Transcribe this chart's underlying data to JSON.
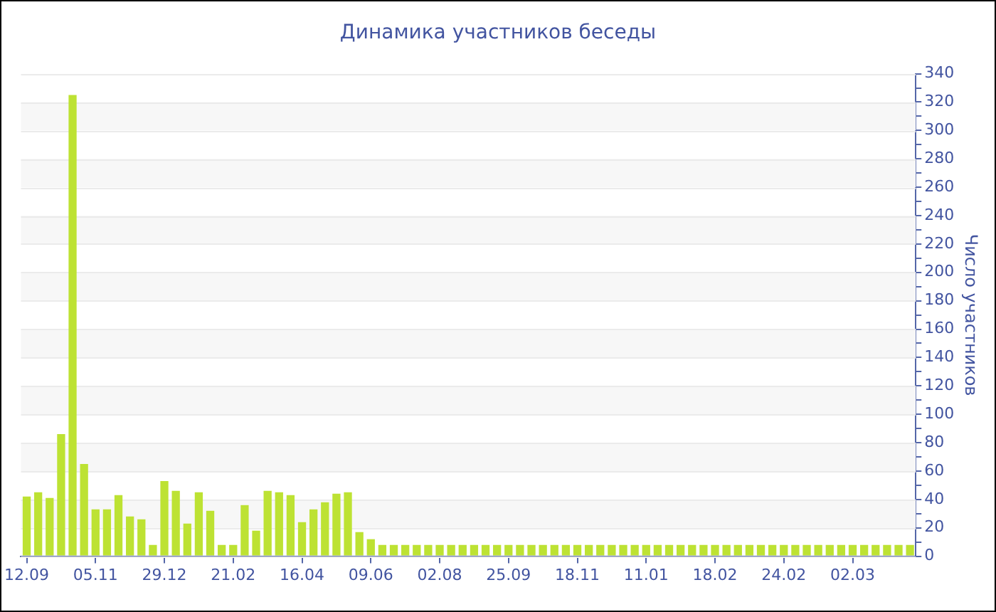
{
  "chart_data": {
    "type": "bar",
    "title": "Динамика участников беседы",
    "ylabel": "Число участников",
    "categories": [
      "12.09",
      null,
      null,
      null,
      null,
      null,
      "05.11",
      null,
      null,
      null,
      null,
      null,
      "29.12",
      null,
      null,
      null,
      null,
      null,
      "21.02",
      null,
      null,
      null,
      null,
      null,
      "16.04",
      null,
      null,
      null,
      null,
      null,
      "09.06",
      null,
      null,
      null,
      null,
      null,
      "02.08",
      null,
      null,
      null,
      null,
      null,
      "25.09",
      null,
      null,
      null,
      null,
      null,
      "18.11",
      null,
      null,
      null,
      null,
      null,
      "11.01",
      null,
      null,
      null,
      null,
      null,
      "18.02",
      null,
      null,
      null,
      null,
      null,
      "24.02",
      null,
      null,
      null,
      null,
      null,
      "02.03",
      null,
      null,
      null,
      null,
      null
    ],
    "values": [
      42,
      45,
      41,
      86,
      325,
      65,
      33,
      33,
      43,
      28,
      26,
      8,
      53,
      46,
      23,
      45,
      32,
      8,
      8,
      36,
      18,
      46,
      45,
      43,
      24,
      33,
      38,
      44,
      45,
      17,
      12,
      8,
      8,
      8,
      8,
      8,
      8,
      8,
      8,
      8,
      8,
      8,
      8,
      8,
      8,
      8,
      8,
      8,
      8,
      8,
      8,
      8,
      8,
      8,
      8,
      8,
      8,
      8,
      8,
      8,
      8,
      8,
      8,
      8,
      8,
      8,
      8,
      8,
      8,
      8,
      8,
      8,
      8,
      8,
      8,
      8,
      8,
      8
    ],
    "color": "#bde233",
    "ylim": [
      0,
      340
    ],
    "yticks": [
      0,
      {
        "value": 10,
        "label": null
      },
      20,
      {
        "value": 30,
        "label": null
      },
      40,
      {
        "value": 50,
        "label": null
      },
      60,
      {
        "value": 70,
        "label": null
      },
      80,
      {
        "value": 90,
        "label": null
      },
      100,
      {
        "value": 110,
        "label": null
      },
      120,
      {
        "value": 130,
        "label": null
      },
      140,
      {
        "value": 150,
        "label": null
      },
      160,
      {
        "value": 170,
        "label": null
      },
      180,
      {
        "value": 190,
        "label": null
      },
      200,
      {
        "value": 210,
        "label": null
      },
      220,
      {
        "value": 230,
        "label": null
      },
      240,
      {
        "value": 250,
        "label": null
      },
      260,
      {
        "value": 270,
        "label": null
      },
      280,
      {
        "value": 290,
        "label": null
      },
      300,
      {
        "value": 310,
        "label": null
      },
      320,
      {
        "value": 330,
        "label": null
      },
      340
    ],
    "grid": "y"
  }
}
